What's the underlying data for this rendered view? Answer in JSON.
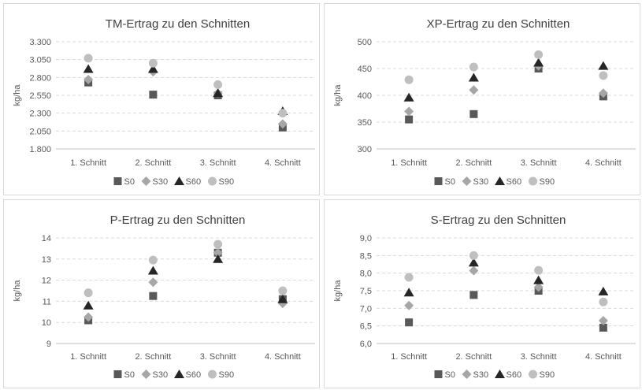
{
  "colors": {
    "S0": "#595959",
    "S30": "#a6a6a6",
    "S60": "#262626",
    "S90": "#bfbfbf",
    "grid": "#d9d9d9",
    "text": "#595959",
    "title": "#404040"
  },
  "chart_data": [
    {
      "type": "scatter",
      "title": "TM-Ertrag zu den Schnitten",
      "xlabel": "",
      "ylabel": "kg/ha",
      "categories": [
        "1. Schnitt",
        "2. Schnitt",
        "3. Schnitt",
        "4. Schnitt"
      ],
      "ylim": [
        1800,
        3300
      ],
      "yticks": [
        "1.800",
        "2.050",
        "2.300",
        "2.550",
        "2.800",
        "3.050",
        "3.300"
      ],
      "grid": true,
      "legend": "bottom",
      "series": [
        {
          "name": "S0",
          "marker": "square",
          "values": [
            2730,
            2560,
            2550,
            2100
          ]
        },
        {
          "name": "S30",
          "marker": "diamond",
          "values": [
            2770,
            2880,
            2580,
            2150
          ]
        },
        {
          "name": "S60",
          "marker": "triangle",
          "values": [
            2920,
            2920,
            2580,
            2330
          ]
        },
        {
          "name": "S90",
          "marker": "circle",
          "values": [
            3070,
            3000,
            2700,
            2300
          ]
        }
      ]
    },
    {
      "type": "scatter",
      "title": "XP-Ertrag zu den Schnitten",
      "xlabel": "",
      "ylabel": "kg/ha",
      "categories": [
        "1. Schnitt",
        "2. Schnitt",
        "3. Schnitt",
        "4. Schnitt"
      ],
      "ylim": [
        300,
        500
      ],
      "yticks": [
        "300",
        "350",
        "400",
        "450",
        "500"
      ],
      "grid": true,
      "legend": "bottom",
      "series": [
        {
          "name": "S0",
          "marker": "square",
          "values": [
            355,
            365,
            450,
            398
          ]
        },
        {
          "name": "S30",
          "marker": "diamond",
          "values": [
            370,
            410,
            455,
            404
          ]
        },
        {
          "name": "S60",
          "marker": "triangle",
          "values": [
            396,
            433,
            461,
            455
          ]
        },
        {
          "name": "S90",
          "marker": "circle",
          "values": [
            429,
            453,
            476,
            437
          ]
        }
      ]
    },
    {
      "type": "scatter",
      "title": "P-Ertrag zu den Schnitten",
      "xlabel": "",
      "ylabel": "kg/ha",
      "categories": [
        "1. Schnitt",
        "2. Schnitt",
        "3. Schnitt",
        "4. Schnitt"
      ],
      "ylim": [
        9,
        14
      ],
      "yticks": [
        "9",
        "10",
        "11",
        "12",
        "13",
        "14"
      ],
      "grid": true,
      "legend": "bottom",
      "series": [
        {
          "name": "S0",
          "marker": "square",
          "values": [
            10.1,
            11.25,
            13.3,
            11.1
          ]
        },
        {
          "name": "S30",
          "marker": "diamond",
          "values": [
            10.25,
            11.9,
            13.3,
            10.9
          ]
        },
        {
          "name": "S60",
          "marker": "triangle",
          "values": [
            10.8,
            12.45,
            13.0,
            11.1
          ]
        },
        {
          "name": "S90",
          "marker": "circle",
          "values": [
            11.4,
            12.95,
            13.7,
            11.5
          ]
        }
      ]
    },
    {
      "type": "scatter",
      "title": "S-Ertrag zu den Schnitten",
      "xlabel": "",
      "ylabel": "kg/ha",
      "categories": [
        "1. Schnitt",
        "2. Schnitt",
        "3. Schnitt",
        "4. Schnitt"
      ],
      "ylim": [
        6.0,
        9.0
      ],
      "yticks": [
        "6,0",
        "6,5",
        "7,0",
        "7,5",
        "8,0",
        "8,5",
        "9,0"
      ],
      "grid": true,
      "legend": "bottom",
      "series": [
        {
          "name": "S0",
          "marker": "square",
          "values": [
            6.6,
            7.38,
            7.5,
            6.45
          ]
        },
        {
          "name": "S30",
          "marker": "diamond",
          "values": [
            7.08,
            8.07,
            7.6,
            6.65
          ]
        },
        {
          "name": "S60",
          "marker": "triangle",
          "values": [
            7.45,
            8.3,
            7.8,
            7.48
          ]
        },
        {
          "name": "S90",
          "marker": "circle",
          "values": [
            7.88,
            8.5,
            8.08,
            7.18
          ]
        }
      ]
    }
  ]
}
